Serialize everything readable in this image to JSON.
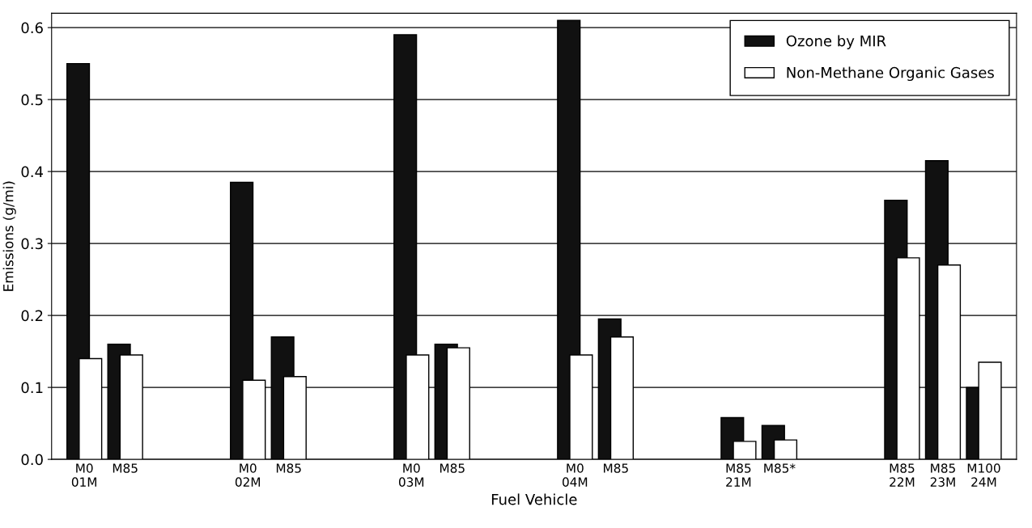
{
  "chart_data": {
    "type": "bar",
    "xlabel": "Fuel Vehicle",
    "ylabel": "Emissions (g/mi)",
    "categories": [
      "M0\n01M",
      "M85",
      null,
      null,
      "M0\n02M",
      "M85",
      null,
      null,
      "M0\n03M",
      "M85",
      null,
      null,
      "M0\n04M",
      "M85",
      null,
      null,
      "M85\n21M",
      "M85*",
      null,
      null,
      "M85\n22M",
      "M85\n23M",
      "M100\n24M"
    ],
    "series": [
      {
        "name": "Ozone by MIR",
        "color": "#111111",
        "values": [
          0.55,
          0.16,
          null,
          null,
          0.385,
          0.17,
          null,
          null,
          0.59,
          0.16,
          null,
          null,
          0.61,
          0.195,
          null,
          null,
          0.058,
          0.047,
          null,
          null,
          0.36,
          0.415,
          0.1
        ]
      },
      {
        "name": "Non-Methane Organic Gases",
        "color": "#ffffff",
        "values": [
          0.14,
          0.145,
          null,
          null,
          0.11,
          0.115,
          null,
          null,
          0.145,
          0.155,
          null,
          null,
          0.145,
          0.17,
          null,
          null,
          0.025,
          0.027,
          null,
          null,
          0.28,
          0.27,
          0.135
        ]
      }
    ],
    "ylim": [
      0,
      0.62
    ],
    "yticks": [
      {
        "value": 0,
        "label": "0.0"
      },
      0.1,
      0.2,
      0.3,
      0.4,
      0.5,
      0.6
    ],
    "grid": "y",
    "legend": "top right"
  }
}
